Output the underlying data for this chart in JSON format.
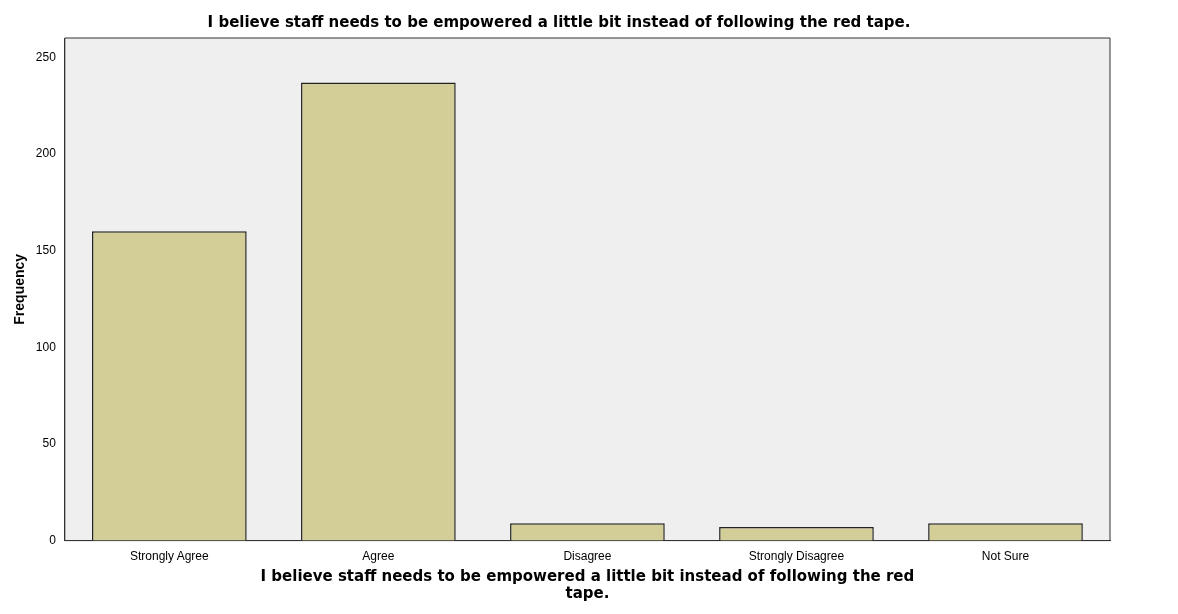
{
  "chart_data": {
    "type": "bar",
    "title": "I believe staff needs to be empowered a little bit instead of following the red tape.",
    "xlabel": "I believe staff needs to be empowered a little bit instead of following the red tape.",
    "ylabel": "Frequency",
    "categories": [
      "Strongly Agree",
      "Agree",
      "Disagree",
      "Strongly Disagree",
      "Not Sure"
    ],
    "values": [
      160,
      237,
      9,
      7,
      9
    ],
    "color": "#d3cd97",
    "ylim": [
      0,
      260
    ],
    "yticks": [
      0,
      50,
      100,
      150,
      200,
      250
    ],
    "grid": false,
    "legend": false
  }
}
